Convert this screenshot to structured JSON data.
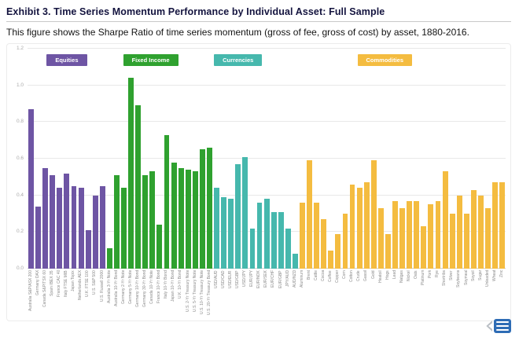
{
  "page": {
    "title": "Exhibit 3. Time Series Momentum Performance by Individual Asset: Full Sample",
    "subtitle": "This figure shows the Sharpe Ratio of time series momentum (gross of fee, gross of cost) by asset, 1880-2016."
  },
  "chart_data": {
    "type": "bar",
    "title": "Time Series Momentum Performance by Individual Asset: Full Sample",
    "metric": "Sharpe Ratio",
    "ylim": [
      0,
      1.2
    ],
    "yticks": [
      0.0,
      0.2,
      0.4,
      0.6,
      0.8,
      1.0,
      1.2
    ],
    "grid": true,
    "legend_position": "top",
    "groups": [
      {
        "name": "Equities",
        "color": "#6e55a4",
        "legend_left": "4%",
        "bars": [
          {
            "label": "Australia S&P/ASX 200",
            "value": 0.87
          },
          {
            "label": "Germany DAX",
            "value": 0.34
          },
          {
            "label": "Canada S&P/TSX 60",
            "value": 0.55
          },
          {
            "label": "Spain IBEX 35",
            "value": 0.51
          },
          {
            "label": "France CAC 40",
            "value": 0.44
          },
          {
            "label": "Italy FTSE MIB",
            "value": 0.52
          },
          {
            "label": "Japan Topix",
            "value": 0.45
          },
          {
            "label": "Netherlands AEX",
            "value": 0.44
          },
          {
            "label": "U.K. FTSE 100",
            "value": 0.21
          },
          {
            "label": "U.S. S&P 500",
            "value": 0.4
          },
          {
            "label": "U.S. Russell 2000",
            "value": 0.45
          }
        ]
      },
      {
        "name": "Fixed Income",
        "color": "#2fa12f",
        "legend_left": "20%",
        "bars": [
          {
            "label": "Australia 3-Yr Note",
            "value": 0.11
          },
          {
            "label": "Australia 10-Yr Bond",
            "value": 0.51
          },
          {
            "label": "Germany 2-Yr Note",
            "value": 0.44
          },
          {
            "label": "Germany 5-Yr Note",
            "value": 1.04
          },
          {
            "label": "Germany 10-Yr Bond",
            "value": 0.89
          },
          {
            "label": "Germany 30-Yr Bond",
            "value": 0.51
          },
          {
            "label": "Canada 10-Yr Note",
            "value": 0.53
          },
          {
            "label": "France 10-Yr Bond",
            "value": 0.24
          },
          {
            "label": "Italy 10-Yr Bond",
            "value": 0.73
          },
          {
            "label": "Japan 10-Yr Bond",
            "value": 0.58
          },
          {
            "label": "U.K. 10-Yr Bond",
            "value": 0.55
          },
          {
            "label": "U.S. 2-Yr Treasury Note",
            "value": 0.54
          },
          {
            "label": "U.S. 5-Yr Treasury Note",
            "value": 0.53
          },
          {
            "label": "U.S. 10-Yr Treasury Note",
            "value": 0.65
          },
          {
            "label": "U.S. 20-Yr Treasury Bond",
            "value": 0.66
          }
        ]
      },
      {
        "name": "Currencies",
        "color": "#46b8ad",
        "legend_left": "39%",
        "bars": [
          {
            "label": "USD/AUD",
            "value": 0.44
          },
          {
            "label": "USD/CAD",
            "value": 0.39
          },
          {
            "label": "USD/EUR",
            "value": 0.38
          },
          {
            "label": "USD/GBP",
            "value": 0.57
          },
          {
            "label": "USD/JPY",
            "value": 0.61
          },
          {
            "label": "EUR/JPY",
            "value": 0.22
          },
          {
            "label": "EUR/NOK",
            "value": 0.36
          },
          {
            "label": "EUR/SEK",
            "value": 0.38
          },
          {
            "label": "EUR/CHF",
            "value": 0.31
          },
          {
            "label": "EUR/GBP",
            "value": 0.31
          },
          {
            "label": "JPY/AUD",
            "value": 0.22
          },
          {
            "label": "AUD/NZD",
            "value": 0.08
          }
        ]
      },
      {
        "name": "Commodities",
        "color": "#f4bc40",
        "legend_left": "69%",
        "bars": [
          {
            "label": "Aluminum",
            "value": 0.36
          },
          {
            "label": "Brent",
            "value": 0.59
          },
          {
            "label": "Cattle",
            "value": 0.36
          },
          {
            "label": "Cocoa",
            "value": 0.27
          },
          {
            "label": "Coffee",
            "value": 0.1
          },
          {
            "label": "Copper",
            "value": 0.19
          },
          {
            "label": "Corn",
            "value": 0.3
          },
          {
            "label": "Cotton",
            "value": 0.46
          },
          {
            "label": "Crude",
            "value": 0.44
          },
          {
            "label": "Gasoil",
            "value": 0.47
          },
          {
            "label": "Gold",
            "value": 0.59
          },
          {
            "label": "Heatoil",
            "value": 0.33
          },
          {
            "label": "Hogs",
            "value": 0.19
          },
          {
            "label": "Lead",
            "value": 0.37
          },
          {
            "label": "Natgas",
            "value": 0.33
          },
          {
            "label": "Nickel",
            "value": 0.37
          },
          {
            "label": "Oats",
            "value": 0.37
          },
          {
            "label": "Platinum",
            "value": 0.23
          },
          {
            "label": "Pork",
            "value": 0.35
          },
          {
            "label": "Rye",
            "value": 0.37
          },
          {
            "label": "Shortribs",
            "value": 0.53
          },
          {
            "label": "Silver",
            "value": 0.3
          },
          {
            "label": "Soybeans",
            "value": 0.4
          },
          {
            "label": "Soymeal",
            "value": 0.3
          },
          {
            "label": "Soyoil",
            "value": 0.43
          },
          {
            "label": "Sugar",
            "value": 0.4
          },
          {
            "label": "Unleaded",
            "value": 0.33
          },
          {
            "label": "Wheat",
            "value": 0.47
          },
          {
            "label": "Zinc",
            "value": 0.47
          }
        ]
      }
    ]
  }
}
